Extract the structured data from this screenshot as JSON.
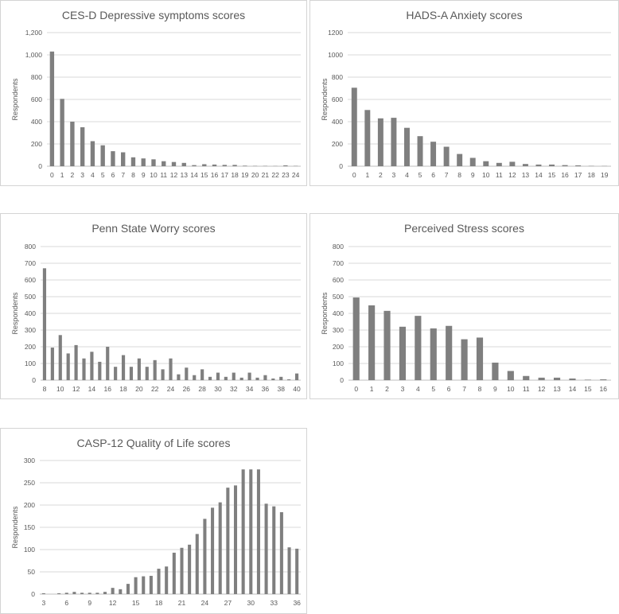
{
  "colors": {
    "bar": "#7f7f7f",
    "grid": "#d9d9d9",
    "text": "#595959",
    "border": "#d4d4d4"
  },
  "chart_data": [
    {
      "id": "cesd",
      "type": "bar",
      "title": "CES-D Depressive symptoms scores",
      "xlabel": "",
      "ylabel": "Respondents",
      "ylim": [
        0,
        1200
      ],
      "yticks": [
        "0",
        "200",
        "400",
        "600",
        "800",
        "1,000",
        "1,200"
      ],
      "categories": [
        "0",
        "1",
        "2",
        "3",
        "4",
        "5",
        "6",
        "7",
        "8",
        "9",
        "10",
        "11",
        "12",
        "13",
        "14",
        "15",
        "16",
        "17",
        "18",
        "19",
        "20",
        "21",
        "22",
        "23",
        "24"
      ],
      "xtick_labels": [
        "0",
        "1",
        "2",
        "3",
        "4",
        "5",
        "6",
        "7",
        "8",
        "9",
        "10",
        "11",
        "12",
        "13",
        "14",
        "15",
        "16",
        "17",
        "18",
        "19",
        "20",
        "21",
        "22",
        "23",
        "24"
      ],
      "values": [
        1030,
        605,
        400,
        350,
        225,
        188,
        135,
        125,
        80,
        70,
        62,
        45,
        38,
        30,
        10,
        18,
        15,
        12,
        12,
        5,
        3,
        3,
        2,
        8,
        3
      ]
    },
    {
      "id": "hads",
      "type": "bar",
      "title": "HADS-A Anxiety scores",
      "xlabel": "",
      "ylabel": "Respondents",
      "ylim": [
        0,
        1200
      ],
      "yticks": [
        "0",
        "200",
        "400",
        "600",
        "800",
        "1000",
        "1200"
      ],
      "categories": [
        "0",
        "1",
        "2",
        "3",
        "4",
        "5",
        "6",
        "7",
        "8",
        "9",
        "10",
        "11",
        "12",
        "13",
        "14",
        "15",
        "16",
        "17",
        "18",
        "19"
      ],
      "xtick_labels": [
        "0",
        "1",
        "2",
        "3",
        "4",
        "5",
        "6",
        "7",
        "8",
        "9",
        "10",
        "11",
        "12",
        "13",
        "14",
        "15",
        "16",
        "17",
        "18",
        "19"
      ],
      "values": [
        705,
        505,
        430,
        435,
        345,
        270,
        220,
        175,
        110,
        75,
        45,
        30,
        40,
        20,
        15,
        15,
        10,
        8,
        3,
        2
      ]
    },
    {
      "id": "pswq",
      "type": "bar",
      "title": "Penn State Worry scores",
      "xlabel": "",
      "ylabel": "Respondents",
      "ylim": [
        0,
        800
      ],
      "yticks": [
        "0",
        "100",
        "200",
        "300",
        "400",
        "500",
        "600",
        "700",
        "800"
      ],
      "categories": [
        "8",
        "9",
        "10",
        "11",
        "12",
        "13",
        "14",
        "15",
        "16",
        "17",
        "18",
        "19",
        "20",
        "21",
        "22",
        "23",
        "24",
        "25",
        "26",
        "27",
        "28",
        "29",
        "30",
        "31",
        "32",
        "33",
        "34",
        "35",
        "36",
        "37",
        "38",
        "39",
        "40"
      ],
      "xtick_labels": [
        "8",
        "",
        "10",
        "",
        "12",
        "",
        "14",
        "",
        "16",
        "",
        "18",
        "",
        "20",
        "",
        "22",
        "",
        "24",
        "",
        "26",
        "",
        "28",
        "",
        "30",
        "",
        "32",
        "",
        "34",
        "",
        "36",
        "",
        "38",
        "",
        "40"
      ],
      "values": [
        670,
        195,
        270,
        160,
        210,
        130,
        170,
        110,
        200,
        80,
        150,
        80,
        130,
        80,
        120,
        65,
        130,
        35,
        75,
        30,
        65,
        20,
        45,
        20,
        45,
        15,
        45,
        15,
        30,
        10,
        20,
        5,
        40
      ]
    },
    {
      "id": "pss",
      "type": "bar",
      "title": "Perceived Stress scores",
      "xlabel": "",
      "ylabel": "Respondents",
      "ylim": [
        0,
        800
      ],
      "yticks": [
        "0",
        "100",
        "200",
        "300",
        "400",
        "500",
        "600",
        "700",
        "800"
      ],
      "categories": [
        "0",
        "1",
        "2",
        "3",
        "4",
        "5",
        "6",
        "7",
        "8",
        "9",
        "10",
        "11",
        "12",
        "13",
        "14",
        "15",
        "16"
      ],
      "xtick_labels": [
        "0",
        "1",
        "2",
        "3",
        "4",
        "5",
        "6",
        "7",
        "8",
        "9",
        "10",
        "11",
        "12",
        "13",
        "14",
        "15",
        "16"
      ],
      "values": [
        495,
        448,
        415,
        320,
        385,
        310,
        325,
        245,
        255,
        105,
        55,
        25,
        15,
        15,
        10,
        3,
        5
      ]
    },
    {
      "id": "casp",
      "type": "bar",
      "title": "CASP-12 Quality of Life scores",
      "xlabel": "",
      "ylabel": "Respondents",
      "ylim": [
        0,
        300
      ],
      "yticks": [
        "0",
        "50",
        "100",
        "150",
        "200",
        "250",
        "300"
      ],
      "categories": [
        "3",
        "4",
        "5",
        "6",
        "7",
        "8",
        "9",
        "10",
        "11",
        "12",
        "13",
        "14",
        "15",
        "16",
        "17",
        "18",
        "19",
        "20",
        "21",
        "22",
        "23",
        "24",
        "25",
        "26",
        "27",
        "28",
        "29",
        "30",
        "31",
        "32",
        "33",
        "34",
        "35",
        "36"
      ],
      "xtick_labels": [
        "3",
        "",
        "",
        "6",
        "",
        "",
        "9",
        "",
        "",
        "12",
        "",
        "",
        "15",
        "",
        "",
        "18",
        "",
        "",
        "21",
        "",
        "",
        "24",
        "",
        "",
        "27",
        "",
        "",
        "30",
        "",
        "",
        "33",
        "",
        "",
        "36"
      ],
      "values": [
        2,
        0,
        2,
        3,
        5,
        3,
        3,
        3,
        5,
        14,
        11,
        23,
        38,
        40,
        41,
        57,
        62,
        93,
        104,
        111,
        135,
        169,
        194,
        206,
        239,
        244,
        280,
        280,
        280,
        203,
        197,
        184,
        105,
        102
      ]
    }
  ]
}
